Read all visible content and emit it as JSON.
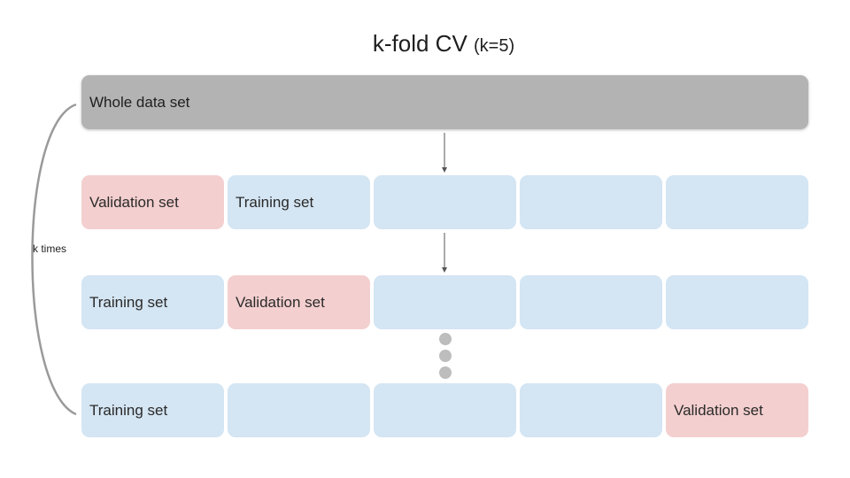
{
  "title": {
    "main": "k-fold CV",
    "sub": "(k=5)"
  },
  "whole_label": "Whole data set",
  "loop_label": "k times",
  "rows": [
    [
      "Validation set",
      "Training set",
      "",
      "",
      ""
    ],
    [
      "Training set",
      "Validation set",
      "",
      "",
      ""
    ],
    [
      "Training set",
      "",
      "",
      "",
      "Validation set"
    ]
  ],
  "row_roles": [
    [
      "validation",
      "training",
      "training",
      "training",
      "training"
    ],
    [
      "training",
      "validation",
      "training",
      "training",
      "training"
    ],
    [
      "training",
      "training",
      "training",
      "training",
      "validation"
    ]
  ],
  "colors": {
    "whole": "#b3b3b3",
    "training": "#d4e5f3",
    "validation": "#f4cfcf",
    "dots": "#bdbdbd"
  }
}
